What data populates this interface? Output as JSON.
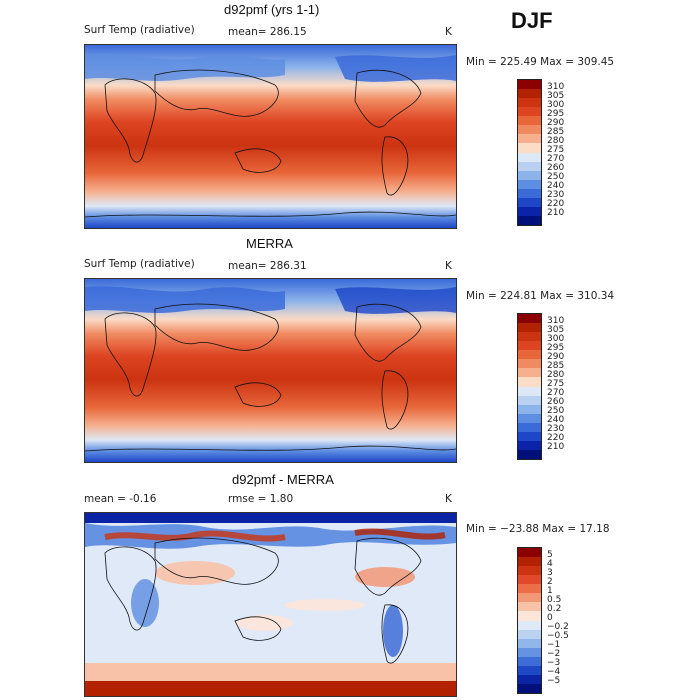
{
  "season": "DJF",
  "panels": [
    {
      "title": "d92pmf (yrs 1-1)",
      "left_label": "Surf Temp (radiative)",
      "mean_text": "mean= 286.15",
      "rmse_text": "",
      "units": "K",
      "minmax": "Min = 225.49 Max = 309.45",
      "colorbar": {
        "labels": [
          "310",
          "305",
          "300",
          "295",
          "290",
          "285",
          "280",
          "275",
          "270",
          "260",
          "250",
          "240",
          "230",
          "220",
          "210"
        ],
        "colors": [
          "#8b0000",
          "#b22200",
          "#cc3311",
          "#dd4422",
          "#e8663a",
          "#f08a60",
          "#f6b08e",
          "#fbdcc7",
          "#dde8f6",
          "#b9d0f0",
          "#8cb3ea",
          "#5e8ee2",
          "#3b6bd9",
          "#1d46c8",
          "#0a23a8",
          "#00107a"
        ]
      }
    },
    {
      "title": "MERRA",
      "left_label": "Surf Temp (radiative)",
      "mean_text": "mean= 286.31",
      "rmse_text": "",
      "units": "K",
      "minmax": "Min = 224.81 Max = 310.34",
      "colorbar": {
        "labels": [
          "310",
          "305",
          "300",
          "295",
          "290",
          "285",
          "280",
          "275",
          "270",
          "260",
          "250",
          "240",
          "230",
          "220",
          "210"
        ],
        "colors": [
          "#8b0000",
          "#b22200",
          "#cc3311",
          "#dd4422",
          "#e8663a",
          "#f08a60",
          "#f6b08e",
          "#fbdcc7",
          "#dde8f6",
          "#b9d0f0",
          "#8cb3ea",
          "#5e8ee2",
          "#3b6bd9",
          "#1d46c8",
          "#0a23a8",
          "#00107a"
        ]
      }
    },
    {
      "title": "d92pmf - MERRA",
      "left_label": "mean =   -0.16",
      "mean_text": "",
      "rmse_text": "rmse =    1.80",
      "units": "K",
      "minmax": "Min = −23.88 Max =   17.18",
      "colorbar": {
        "labels": [
          "5",
          "4",
          "3",
          "2",
          "1",
          "0.5",
          "0.2",
          "0",
          "−0.2",
          "−0.5",
          "−1",
          "−2",
          "−3",
          "−4",
          "−5"
        ],
        "colors": [
          "#8b0000",
          "#b22200",
          "#cc3311",
          "#e04a2a",
          "#ec6d46",
          "#f39877",
          "#f8c2a9",
          "#fde5d8",
          "#dfe9f7",
          "#bcd2f1",
          "#91b6ea",
          "#6592e2",
          "#3f6dd8",
          "#1f48c6",
          "#0b24a6",
          "#00107a"
        ]
      }
    }
  ]
}
